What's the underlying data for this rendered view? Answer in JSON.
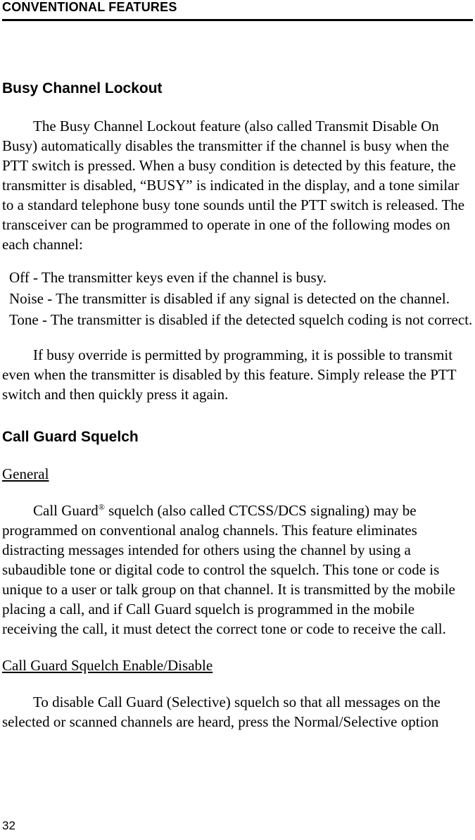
{
  "running_head": "CONVENTIONAL FEATURES",
  "page_number": "32",
  "sec1": {
    "heading": "Busy Channel Lockout",
    "para1": "The Busy Channel Lockout feature (also called Transmit Disable On Busy) automatically disables the transmitter if the channel is busy when the PTT switch is pressed. When a busy condition is detected by this feature, the transmitter is disabled, “BUSY” is indicated in the display, and a tone similar to a standard telephone busy tone sounds until the PTT switch is released. The transceiver can be programmed to operate in one of the following modes on each channel:",
    "defs": [
      {
        "term": "Off",
        "desc": "The transmitter keys even if the channel is busy."
      },
      {
        "term": "Noise",
        "desc": "The transmitter is disabled if any signal is detected on the channel."
      },
      {
        "term": "Tone",
        "desc": "The transmitter is disabled if the detected squelch coding is not correct."
      }
    ],
    "para2": "If busy override is permitted by programming, it is possible to transmit even when the transmitter is disabled by this feature. Simply release the PTT switch and then quickly press it again."
  },
  "sec2": {
    "heading": "Call Guard Squelch",
    "sub1": {
      "heading": "General",
      "para1_a": "Call Guard",
      "para1_sup": "®",
      "para1_b": " squelch (also called CTCSS/DCS signaling) may be programmed on conventional analog channels. This feature eliminates distracting messages intended for others using the channel by using a subaudible tone or digital code to control the squelch. This tone or code is unique to a user or talk group on that channel. It is transmitted by the mobile placing a call, and if Call Guard squelch is programmed in the mobile receiving the call, it must detect the correct tone or code to receive the call."
    },
    "sub2": {
      "heading": "Call Guard Squelch Enable/Disable",
      "para1": "To disable Call Guard (Selective) squelch so that all messages on the selected or scanned channels are heard, press the Normal/Selective option"
    }
  }
}
